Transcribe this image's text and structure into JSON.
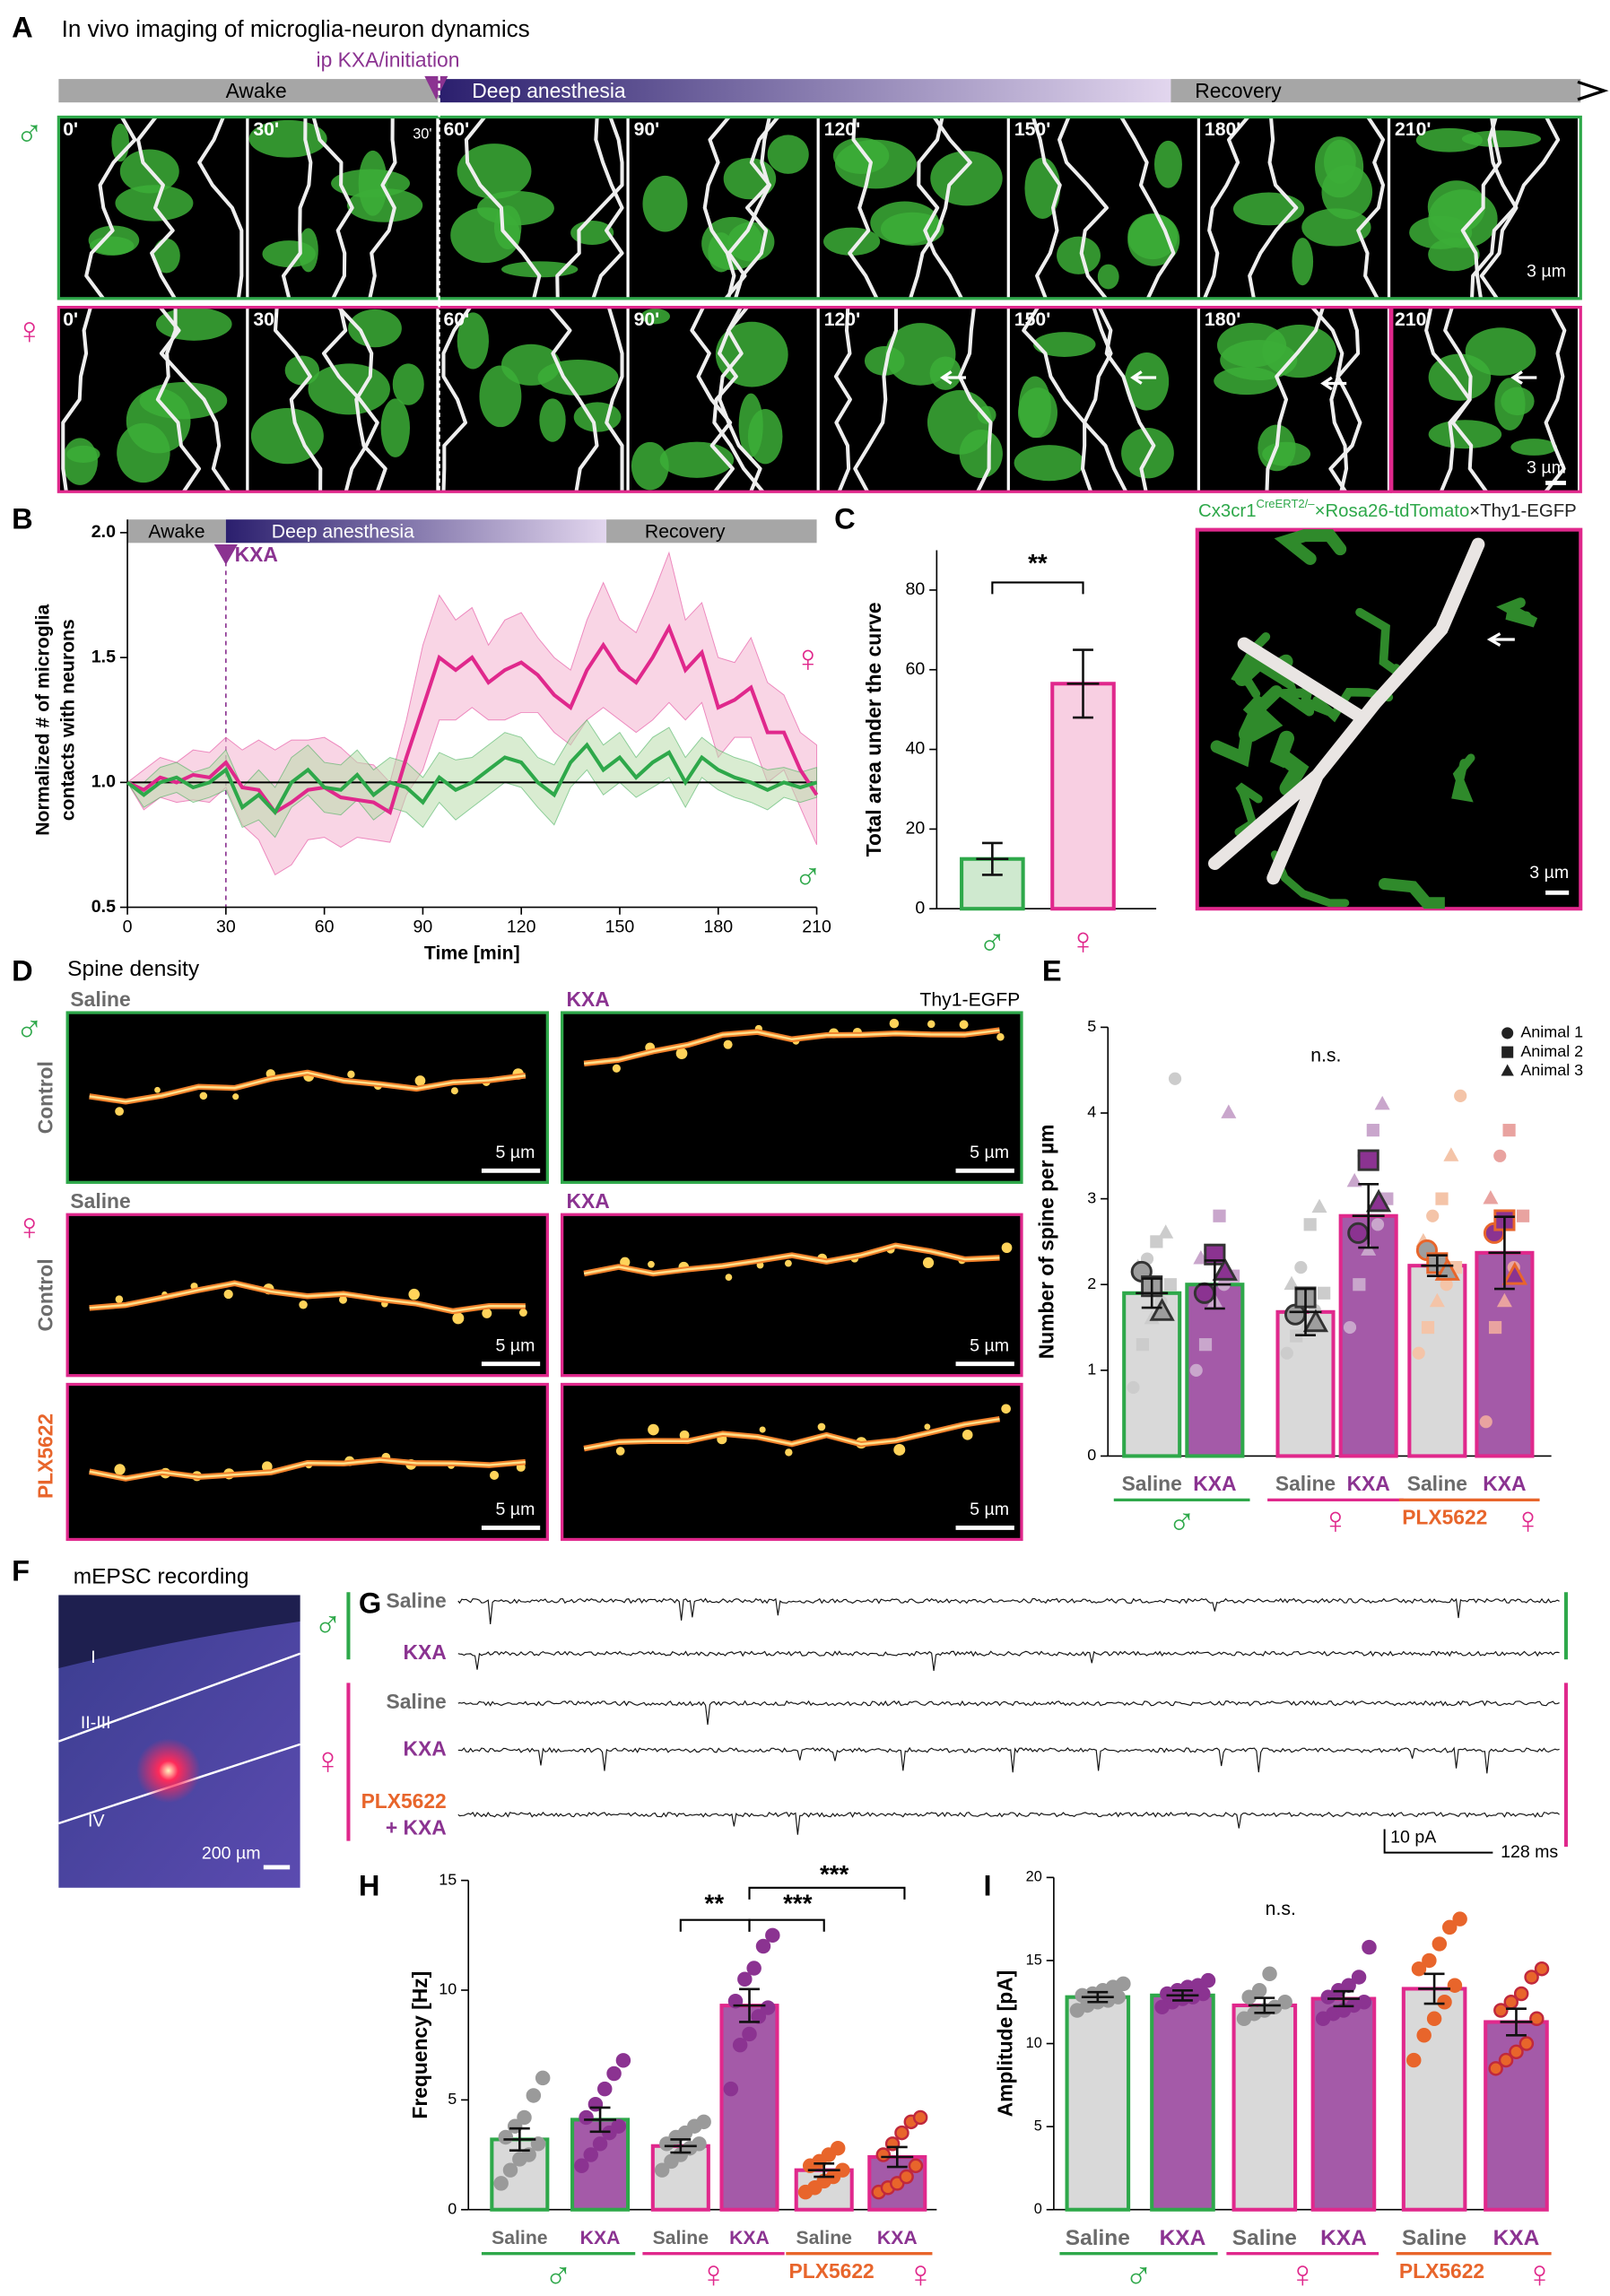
{
  "panel_a": {
    "letter": "A",
    "title": "In vivo imaging of microglia-neuron dynamics",
    "event": "ip KXA/initiation",
    "phases": [
      "Awake",
      "Deep anesthesia",
      "Recovery"
    ],
    "male": "♂",
    "female": "♀",
    "male_times": [
      "0'",
      "30'",
      "60'",
      "90'",
      "120'",
      "150'",
      "180'",
      "210'"
    ],
    "male_inset": "30'",
    "female_times": [
      "0'",
      "30'",
      "60'",
      "90'",
      "120'",
      "150'",
      "180'",
      "210'"
    ],
    "scale_bars": [
      "3 µm",
      "3 µm"
    ]
  },
  "panel_b": {
    "letter": "B",
    "phases": [
      "Awake",
      "Deep anesthesia",
      "Recovery"
    ],
    "event": "KXA"
  },
  "panel_c": {
    "letter": "C"
  },
  "render": {
    "header": [
      "Cx3cr1",
      "CreERT2/–",
      "×Rosa26-tdTomato",
      "×Thy1-EGFP"
    ],
    "scale_bar": "3 µm"
  },
  "panel_d": {
    "letter": "D",
    "title": "Spine density",
    "columns": [
      "Saline",
      "KXA"
    ],
    "columns_female": [
      "Saline",
      "KXA"
    ],
    "reporter": "Thy1-EGFP",
    "male": "♂",
    "female": "♀",
    "rows": [
      "Control",
      "Control",
      "PLX5622"
    ],
    "scale_bars": [
      "5 µm",
      "5 µm",
      "5 µm",
      "5 µm",
      "5 µm",
      "5 µm"
    ]
  },
  "panel_e": {
    "letter": "E"
  },
  "panel_f": {
    "letter": "F",
    "title": "mEPSC recording",
    "layers": [
      "I",
      "II-III",
      "IV"
    ],
    "scale_bar": "200 µm"
  },
  "panel_g": {
    "letter": "G",
    "male": "♂",
    "female": "♀",
    "traces": [
      "Saline",
      "KXA",
      "Saline",
      "KXA",
      "PLX5622"
    ],
    "extra": "+ KXA",
    "scale_y": "10 pA",
    "scale_x": "128 ms"
  },
  "panel_h": {
    "letter": "H"
  },
  "panel_i": {
    "letter": "I"
  },
  "chart_data": [
    {
      "type": "line",
      "xlabel": "Time [min]",
      "ylabel": [
        "Normalized # of microglia",
        "contacts with neurons"
      ],
      "x": [
        0,
        5,
        10,
        15,
        20,
        25,
        30,
        35,
        40,
        45,
        50,
        55,
        60,
        65,
        70,
        75,
        80,
        85,
        90,
        95,
        100,
        105,
        110,
        115,
        120,
        125,
        130,
        135,
        140,
        145,
        150,
        155,
        160,
        165,
        170,
        175,
        180,
        185,
        190,
        195,
        200,
        205,
        210
      ],
      "xlim": [
        0,
        210
      ],
      "xticks": [
        0,
        30,
        60,
        90,
        120,
        150,
        180,
        210
      ],
      "ylim": [
        0.5,
        2
      ],
      "yticks": [
        0.5,
        {
          "value": 1,
          "label": "1.0"
        },
        1.5,
        {
          "value": 2,
          "label": "2.0"
        }
      ],
      "reference_line": 1,
      "event_x": 30,
      "series": [
        {
          "name": "♀",
          "color": "#e0288c",
          "band_color": "#f4b3cf",
          "values": [
            1.0,
            0.97,
            1.02,
            1.0,
            1.03,
            1.02,
            1.08,
            0.98,
            0.97,
            0.88,
            0.92,
            0.97,
            0.98,
            0.94,
            0.93,
            0.92,
            0.88,
            1.1,
            1.3,
            1.5,
            1.45,
            1.5,
            1.4,
            1.45,
            1.48,
            1.43,
            1.35,
            1.3,
            1.45,
            1.55,
            1.45,
            1.4,
            1.5,
            1.62,
            1.45,
            1.52,
            1.3,
            1.33,
            1.38,
            1.2,
            1.2,
            1.05,
            0.95
          ],
          "errors": [
            0,
            0.08,
            0.08,
            0.08,
            0.1,
            0.1,
            0.1,
            0.15,
            0.2,
            0.25,
            0.25,
            0.2,
            0.2,
            0.2,
            0.15,
            0.15,
            0.12,
            0.15,
            0.25,
            0.25,
            0.2,
            0.2,
            0.15,
            0.2,
            0.2,
            0.15,
            0.15,
            0.15,
            0.2,
            0.25,
            0.2,
            0.2,
            0.25,
            0.3,
            0.2,
            0.2,
            0.2,
            0.15,
            0.2,
            0.2,
            0.15,
            0.15,
            0.2
          ]
        },
        {
          "name": "♂",
          "color": "#2ea84a",
          "band_color": "#b9dcab",
          "values": [
            1.0,
            0.95,
            1.0,
            1.02,
            0.98,
            1.0,
            1.05,
            0.9,
            0.95,
            0.88,
            1.0,
            1.05,
            0.98,
            0.97,
            1.03,
            0.95,
            1.0,
            0.98,
            0.92,
            1.02,
            0.97,
            1.0,
            1.05,
            1.1,
            1.08,
            1.0,
            0.95,
            1.08,
            1.15,
            1.05,
            1.1,
            1.02,
            1.08,
            1.12,
            1.0,
            1.1,
            1.05,
            1.02,
            1.0,
            0.97,
            1.0,
            0.98,
            1.0
          ],
          "errors": [
            0,
            0.05,
            0.06,
            0.06,
            0.06,
            0.06,
            0.08,
            0.08,
            0.1,
            0.1,
            0.1,
            0.1,
            0.1,
            0.1,
            0.1,
            0.1,
            0.1,
            0.1,
            0.1,
            0.1,
            0.12,
            0.1,
            0.1,
            0.1,
            0.1,
            0.1,
            0.12,
            0.1,
            0.1,
            0.1,
            0.1,
            0.08,
            0.1,
            0.1,
            0.1,
            0.08,
            0.08,
            0.08,
            0.08,
            0.08,
            0.06,
            0.06,
            0.06
          ]
        }
      ]
    },
    {
      "type": "bar",
      "ylabel": "Total area under the curve",
      "categories": [
        "♂",
        "♀"
      ],
      "values": [
        12.5,
        56.5
      ],
      "errors": [
        4,
        8.5
      ],
      "bar_colors": [
        "#cfe9cf",
        "#f8cfe2"
      ],
      "edge_colors": [
        "#2ea84a",
        "#e0288c"
      ],
      "label_colors": [
        "#2ea84a",
        "#e0288c"
      ],
      "ylim": [
        0,
        90
      ],
      "yticks": [
        0,
        20,
        40,
        60,
        80
      ],
      "annotations": [
        "**"
      ]
    },
    {
      "type": "bar",
      "ylabel": "Number of spine per µm",
      "categories": [
        "Saline",
        "KXA",
        "Saline",
        "KXA",
        "Saline",
        "KXA"
      ],
      "values": [
        1.9,
        2.0,
        1.68,
        2.8,
        2.22,
        2.37
      ],
      "errors": [
        0.17,
        0.28,
        0.27,
        0.37,
        0.12,
        0.42
      ],
      "points": [
        [
          0.8,
          1.3,
          1.6,
          1.8,
          2.0,
          2.2,
          2.3,
          2.5,
          2.6,
          4.4
        ],
        [
          1.0,
          1.3,
          1.8,
          2.0,
          2.1,
          2.3,
          2.4,
          2.8,
          4.0
        ],
        [
          1.2,
          1.4,
          1.5,
          1.7,
          1.9,
          2.0,
          2.2,
          2.7,
          2.9
        ],
        [
          1.5,
          2.0,
          2.4,
          2.7,
          3.0,
          3.2,
          3.5,
          3.8,
          4.1
        ],
        [
          1.2,
          1.5,
          1.8,
          2.0,
          2.2,
          2.5,
          2.8,
          3.0,
          3.5,
          4.2
        ],
        [
          0.4,
          1.5,
          1.8,
          2.2,
          2.8,
          3.0,
          3.5,
          3.8
        ]
      ],
      "animal_means": [
        [
          2.15,
          1.98,
          1.68
        ],
        [
          1.9,
          2.35,
          2.15
        ],
        [
          1.65,
          1.85,
          1.55
        ],
        [
          2.6,
          3.45,
          2.95
        ],
        [
          2.4,
          2.25,
          2.15
        ],
        [
          2.6,
          2.75,
          2.1
        ]
      ],
      "legend": [
        "Animal 1",
        "Animal 2",
        "Animal 3"
      ],
      "bar_colors": [
        "#d9d9d9",
        "#a45aa8",
        "#d9d9d9",
        "#a45aa8",
        "#d9d9d9",
        "#a45aa8"
      ],
      "edge_colors": [
        "#2ea84a",
        "#2ea84a",
        "#e0288c",
        "#e0288c",
        "#e0288c",
        "#e0288c"
      ],
      "point_colors": [
        "#cccccc",
        "#c9a6cc",
        "#cccccc",
        "#c9a6cc",
        "#f4c4a8",
        "#e9a3a0"
      ],
      "point_edge_colors": [
        "#cccccc",
        "#c9a6cc",
        "#cccccc",
        "#c9a6cc",
        "#f4c4a8",
        "#e9a3a0"
      ],
      "mean_colors": [
        "#9e9e9e",
        "#8b3391",
        "#9e9e9e",
        "#8b3391",
        "#9e9e9e",
        "#8b3391"
      ],
      "mean_edge_colors": [
        "#333333",
        "#333333",
        "#333333",
        "#333333",
        "#e8652b",
        "#e8652b"
      ],
      "label_colors": [
        "#6b6b6b",
        "#8b3391",
        "#6b6b6b",
        "#8b3391",
        "#6b6b6b",
        "#8b3391"
      ],
      "groups": [
        {
          "name": "♂",
          "color": "#2ea84a"
        },
        {
          "name": "♀",
          "color": "#e0288c"
        },
        {
          "name": "♀",
          "prefix": "PLX5622",
          "color": "#e0288c",
          "prefix_color": "#e8652b"
        }
      ],
      "ylim": [
        0,
        5
      ],
      "yticks": [
        0,
        1,
        2,
        3,
        4,
        5
      ],
      "annotations": [
        "n.s."
      ]
    },
    {
      "type": "bar",
      "ylabel": "Frequency [Hz]",
      "categories": [
        "Saline",
        "KXA",
        "Saline",
        "KXA",
        "Saline",
        "KXA"
      ],
      "values": [
        3.2,
        4.1,
        2.9,
        9.3,
        1.8,
        2.4
      ],
      "errors": [
        0.5,
        0.55,
        0.3,
        0.75,
        0.3,
        0.45
      ],
      "points": [
        [
          1.2,
          1.8,
          2.3,
          2.5,
          3.0,
          3.3,
          3.8,
          4.2,
          5.2,
          6.0
        ],
        [
          2.0,
          2.5,
          3.0,
          3.5,
          3.8,
          4.2,
          4.8,
          5.5,
          6.2,
          6.8
        ],
        [
          1.8,
          2.2,
          2.5,
          2.8,
          3.0,
          3.0,
          3.3,
          3.5,
          3.8,
          4.0
        ],
        [
          5.5,
          7.5,
          8.0,
          8.8,
          9.2,
          9.5,
          10.5,
          11.0,
          12.0,
          12.5
        ],
        [
          0.8,
          1.0,
          1.3,
          1.5,
          1.8,
          2.0,
          2.2,
          2.5,
          2.8
        ],
        [
          0.8,
          1.0,
          1.2,
          1.5,
          2.0,
          2.5,
          3.0,
          3.5,
          4.0,
          4.2
        ]
      ],
      "bar_colors": [
        "#d9d9d9",
        "#a45aa8",
        "#d9d9d9",
        "#a45aa8",
        "#d9d9d9",
        "#a45aa8"
      ],
      "edge_colors": [
        "#2ea84a",
        "#2ea84a",
        "#e0288c",
        "#e0288c",
        "#e0288c",
        "#e0288c"
      ],
      "point_colors": [
        "#9a9a9a",
        "#8b3391",
        "#9a9a9a",
        "#8b3391",
        "#e8652b",
        "#e8652b"
      ],
      "point_edge_colors": [
        "#9a9a9a",
        "#8b3391",
        "#9a9a9a",
        "#8b3391",
        "#e8652b",
        "#c0283c"
      ],
      "label_colors": [
        "#6b6b6b",
        "#8b3391",
        "#6b6b6b",
        "#8b3391",
        "#6b6b6b",
        "#8b3391"
      ],
      "groups": [
        {
          "name": "♂",
          "color": "#2ea84a"
        },
        {
          "name": "♀",
          "color": "#e0288c"
        },
        {
          "name": "♀",
          "prefix": "PLX5622",
          "color": "#e0288c",
          "prefix_color": "#e8652b"
        }
      ],
      "ylim": [
        0,
        15
      ],
      "yticks": [
        0,
        5,
        10,
        15
      ],
      "annotations": [
        "**",
        "***",
        "***"
      ]
    },
    {
      "type": "bar",
      "ylabel": "Amplitude [pA]",
      "categories": [
        "Saline",
        "KXA",
        "Saline",
        "KXA",
        "Saline",
        "KXA"
      ],
      "values": [
        12.8,
        12.9,
        12.3,
        12.7,
        13.3,
        11.3
      ],
      "errors": [
        0.3,
        0.3,
        0.45,
        0.45,
        0.9,
        0.8
      ],
      "points": [
        [
          12.0,
          12.3,
          12.5,
          12.6,
          12.8,
          12.9,
          13.0,
          13.2,
          13.4,
          13.6
        ],
        [
          12.2,
          12.5,
          12.7,
          12.8,
          13.0,
          13.0,
          13.2,
          13.4,
          13.5,
          13.8
        ],
        [
          11.5,
          11.8,
          12.0,
          12.2,
          12.5,
          12.8,
          13.2,
          14.2
        ],
        [
          11.5,
          11.8,
          12.0,
          12.3,
          12.5,
          12.8,
          13.2,
          13.5,
          14.0,
          15.8
        ],
        [
          9.0,
          10.5,
          11.5,
          12.5,
          13.5,
          14.5,
          15.0,
          16.0,
          17.0,
          17.5
        ],
        [
          8.5,
          9.0,
          9.5,
          10.0,
          11.5,
          12.0,
          12.5,
          13.0,
          14.0,
          14.5
        ]
      ],
      "bar_colors": [
        "#d9d9d9",
        "#a45aa8",
        "#d9d9d9",
        "#a45aa8",
        "#d9d9d9",
        "#a45aa8"
      ],
      "edge_colors": [
        "#2ea84a",
        "#2ea84a",
        "#e0288c",
        "#e0288c",
        "#e0288c",
        "#e0288c"
      ],
      "point_colors": [
        "#9a9a9a",
        "#8b3391",
        "#9a9a9a",
        "#8b3391",
        "#e8652b",
        "#e8652b"
      ],
      "point_edge_colors": [
        "#9a9a9a",
        "#8b3391",
        "#9a9a9a",
        "#8b3391",
        "#e8652b",
        "#c0283c"
      ],
      "label_colors": [
        "#6b6b6b",
        "#8b3391",
        "#6b6b6b",
        "#8b3391",
        "#6b6b6b",
        "#8b3391"
      ],
      "groups": [
        {
          "name": "♂",
          "color": "#2ea84a"
        },
        {
          "name": "♀",
          "color": "#e0288c"
        },
        {
          "name": "♀",
          "prefix": "PLX5622",
          "color": "#e0288c",
          "prefix_color": "#e8652b"
        }
      ],
      "ylim": [
        0,
        20
      ],
      "yticks": [
        0,
        5,
        10,
        15,
        20
      ],
      "annotations": [
        "n.s."
      ]
    }
  ]
}
